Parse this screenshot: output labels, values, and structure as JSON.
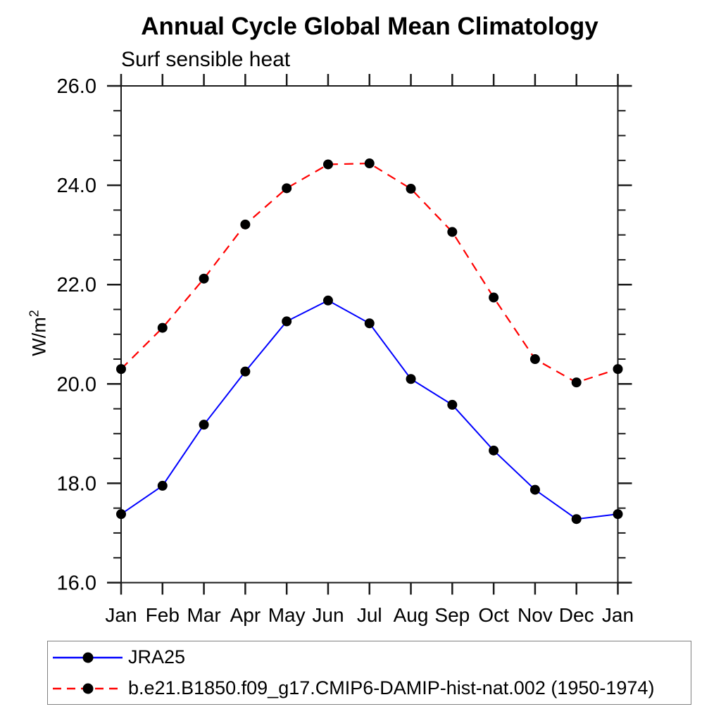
{
  "title": "Annual Cycle Global Mean Climatology",
  "subtitle": "Surf sensible heat",
  "ylabel": {
    "base": "W/m",
    "exponent": "2"
  },
  "legend": {
    "items": [
      {
        "label": "JRA25"
      },
      {
        "label": "b.e21.B1850.f09_g17.CMIP6-DAMIP-hist-nat.002 (1950-1974)"
      }
    ]
  },
  "chart_data": {
    "type": "line",
    "title": "Annual Cycle Global Mean Climatology",
    "subtitle": "Surf sensible heat",
    "xlabel": "",
    "ylabel": "W/m^2",
    "categories": [
      "Jan",
      "Feb",
      "Mar",
      "Apr",
      "May",
      "Jun",
      "Jul",
      "Aug",
      "Sep",
      "Oct",
      "Nov",
      "Dec",
      "Jan"
    ],
    "ylim": [
      16.0,
      26.0
    ],
    "yticks_major": [
      16.0,
      18.0,
      20.0,
      22.0,
      24.0,
      26.0
    ],
    "ytick_labels": [
      "16.0",
      "18.0",
      "20.0",
      "22.0",
      "24.0",
      "26.0"
    ],
    "y_minor_step": 0.5,
    "grid": false,
    "legend_position": "bottom-left-box",
    "frame_color": "#1a1a1a",
    "marker_color": "#000000",
    "series": [
      {
        "name": "JRA25",
        "color": "#0000ff",
        "line_style": "solid",
        "marker": "filled-circle",
        "values": [
          17.38,
          17.95,
          19.18,
          20.25,
          21.26,
          21.68,
          21.22,
          20.1,
          19.58,
          18.66,
          17.87,
          17.28,
          17.38
        ]
      },
      {
        "name": "b.e21.B1850.f09_g17.CMIP6-DAMIP-hist-nat.002 (1950-1974)",
        "color": "#ff0000",
        "line_style": "dashed",
        "marker": "filled-circle",
        "values": [
          20.3,
          21.13,
          22.12,
          23.21,
          23.94,
          24.42,
          24.44,
          23.93,
          23.06,
          21.74,
          20.5,
          20.03,
          20.3
        ]
      }
    ]
  }
}
